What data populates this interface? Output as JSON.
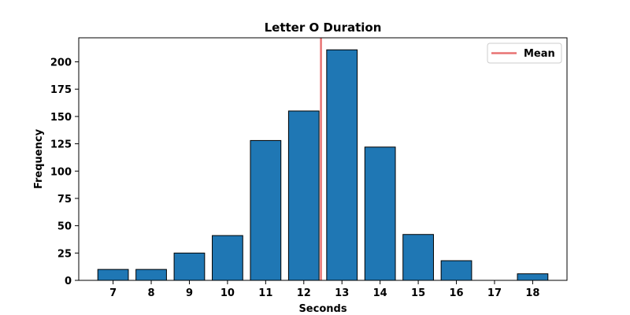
{
  "chart_data": {
    "type": "bar",
    "title": "Letter O Duration",
    "xlabel": "Seconds",
    "ylabel": "Frequency",
    "categories": [
      "7",
      "8",
      "9",
      "10",
      "11",
      "12",
      "13",
      "14",
      "15",
      "16",
      "17",
      "18"
    ],
    "x": [
      7,
      8,
      9,
      10,
      11,
      12,
      13,
      14,
      15,
      16,
      17,
      18
    ],
    "values": [
      10,
      10,
      25,
      41,
      128,
      155,
      211,
      122,
      42,
      18,
      0,
      6
    ],
    "xlim": [
      6.1,
      18.9
    ],
    "ylim": [
      0,
      222
    ],
    "yticks": [
      0,
      25,
      50,
      75,
      100,
      125,
      150,
      175,
      200
    ],
    "mean": 12.45,
    "mean_label": "Mean",
    "grid": false,
    "legend_position": "top-right",
    "colors": {
      "bar": "#1f77b4",
      "bar_edge": "#000000",
      "mean_line": "#e87373"
    }
  }
}
